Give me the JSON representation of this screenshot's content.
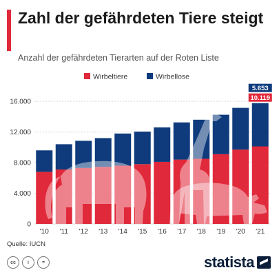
{
  "header": {
    "title": "Zahl der gefährdeten Tiere steigt",
    "subtitle": "Anzahl der gefährdeten Tierarten auf der Roten Liste"
  },
  "footer": {
    "source": "Quelle: IUCN",
    "brand": "statista",
    "license_icons": [
      "cc-icon",
      "by-icon",
      "nd-icon"
    ]
  },
  "colors": {
    "wirbeltiere": "#e0293a",
    "wirbellose": "#0f3b7d",
    "accent": "#e0293a",
    "grid": "#d6d6d6",
    "silhouette": "#ffffff"
  },
  "chart_data": {
    "type": "bar",
    "stacked": true,
    "categories": [
      "'10",
      "'11",
      "'12",
      "'13",
      "'14",
      "'15",
      "'16",
      "'17",
      "'18",
      "'19",
      "'20",
      "'21"
    ],
    "series": [
      {
        "name": "Wirbeltiere",
        "values": [
          6800,
          7100,
          7300,
          7450,
          7600,
          7800,
          8100,
          8400,
          8500,
          9100,
          9700,
          10119
        ]
      },
      {
        "name": "Wirbellose",
        "values": [
          2800,
          3300,
          3550,
          3750,
          4200,
          4250,
          4500,
          4850,
          5100,
          5150,
          5450,
          5653
        ]
      }
    ],
    "yticks": [
      "0",
      "4.000",
      "8.000",
      "12.000",
      "16.000"
    ],
    "ytick_values": [
      0,
      4000,
      8000,
      12000,
      16000
    ],
    "ylim": [
      0,
      17000
    ],
    "value_labels": [
      {
        "category": "'21",
        "series": "Wirbellose",
        "text": "5.653"
      },
      {
        "category": "'21",
        "series": "Wirbeltiere",
        "text": "10.119"
      }
    ],
    "legend": {
      "position": "top",
      "entries": [
        "Wirbeltiere",
        "Wirbellose"
      ]
    },
    "grid": true,
    "decoration": [
      "elephant-silhouette",
      "giraffe-silhouette",
      "rhino-silhouette"
    ]
  }
}
